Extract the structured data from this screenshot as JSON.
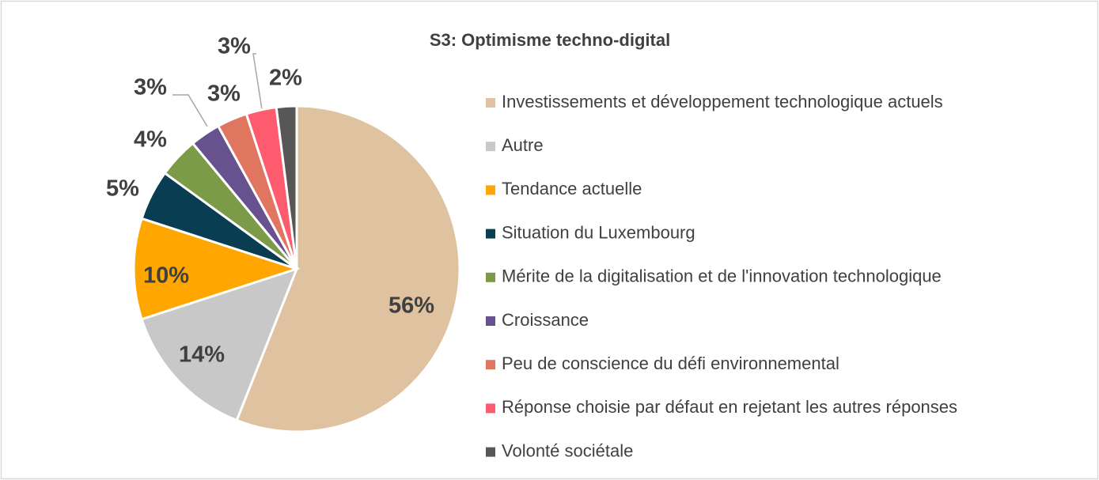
{
  "chart_data": {
    "type": "pie",
    "title": "S3: Optimisme techno-digital",
    "categories": [
      "Investissements et développement technologique actuels",
      "Autre",
      "Tendance actuelle",
      "Situation du Luxembourg",
      "Mérite de la digitalisation et de l'innovation technologique",
      "Croissance",
      "Peu de conscience du défi environnemental",
      "Réponse choisie par défaut en rejetant les autres réponses",
      "Volonté sociétale"
    ],
    "values": [
      56,
      14,
      10,
      5,
      4,
      3,
      3,
      3,
      2
    ],
    "value_labels": [
      "56%",
      "14%",
      "10%",
      "5%",
      "4%",
      "3%",
      "3%",
      "3%",
      "2%"
    ],
    "colors": [
      "#dfc29f",
      "#c8c8c8",
      "#ffa600",
      "#093d52",
      "#7c9b48",
      "#67518f",
      "#e07560",
      "#ff5b6e",
      "#575757"
    ],
    "legend": "right"
  }
}
